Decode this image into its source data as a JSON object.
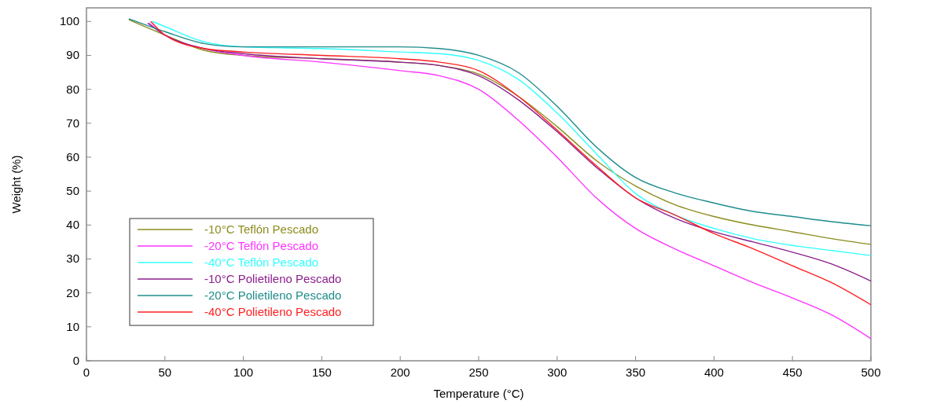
{
  "chart_data": {
    "type": "line",
    "xlabel": "Temperature (°C)",
    "ylabel": "Weight (%)",
    "xlim": [
      0,
      500
    ],
    "ylim": [
      0,
      104
    ],
    "xticks": [
      0,
      50,
      100,
      150,
      200,
      250,
      300,
      350,
      400,
      450,
      500
    ],
    "yticks": [
      0,
      10,
      20,
      30,
      40,
      50,
      60,
      70,
      80,
      90,
      100
    ],
    "grid": false,
    "legend": "bottom left",
    "marker": "none",
    "line_style": "solid",
    "series": [
      {
        "name": "-10°C Teflón Pescado",
        "color": "#8c8c1e",
        "x": [
          27,
          50,
          75,
          100,
          150,
          200,
          225,
          250,
          275,
          300,
          325,
          350,
          375,
          400,
          425,
          450,
          475,
          500
        ],
        "values": [
          100.5,
          96,
          91.5,
          90,
          89,
          88,
          87,
          84.5,
          78,
          69,
          59,
          51.5,
          46,
          42.5,
          40,
          38,
          36,
          34.3
        ]
      },
      {
        "name": "-20°C Teflón Pescado",
        "color": "#ff33ff",
        "x": [
          40,
          50,
          75,
          100,
          150,
          200,
          225,
          250,
          275,
          300,
          325,
          350,
          375,
          400,
          425,
          450,
          475,
          500
        ],
        "values": [
          99.5,
          96,
          92,
          90,
          88,
          85.5,
          84,
          80,
          71,
          60,
          48,
          39,
          33,
          28,
          23,
          18.5,
          13.5,
          6.5
        ]
      },
      {
        "name": "-40°C Teflón Pescado",
        "color": "#33ffff",
        "x": [
          42,
          50,
          75,
          100,
          150,
          200,
          225,
          250,
          275,
          300,
          325,
          350,
          375,
          400,
          425,
          450,
          475,
          500
        ],
        "values": [
          100,
          98.5,
          94,
          92.5,
          92,
          91,
          90.5,
          88.5,
          83,
          73,
          61,
          49.3,
          43,
          39,
          36,
          34,
          32.5,
          31
        ]
      },
      {
        "name": "-10°C Polietileno Pescado",
        "color": "#8c1e8c",
        "x": [
          39,
          50,
          75,
          100,
          150,
          200,
          225,
          250,
          275,
          300,
          325,
          350,
          375,
          400,
          425,
          450,
          475,
          500
        ],
        "values": [
          99.5,
          96,
          92,
          90.5,
          89,
          88,
          87,
          84,
          77,
          67.5,
          57,
          48,
          42,
          38,
          35,
          32,
          28.5,
          23.5
        ]
      },
      {
        "name": "-20°C Polietileno Pescado",
        "color": "#1e8c8c",
        "x": [
          27,
          50,
          75,
          100,
          150,
          200,
          225,
          250,
          275,
          300,
          325,
          350,
          375,
          400,
          425,
          450,
          475,
          500
        ],
        "values": [
          100.8,
          97,
          93.5,
          92.5,
          92.5,
          92.5,
          92,
          90,
          85,
          75,
          63,
          54,
          49.5,
          46.5,
          44,
          42.5,
          41,
          39.8
        ]
      },
      {
        "name": "-40°C Polietileno Pescado",
        "color": "#ff2020",
        "x": [
          41,
          50,
          75,
          100,
          150,
          200,
          225,
          250,
          275,
          300,
          325,
          350,
          375,
          400,
          425,
          450,
          475,
          500
        ],
        "values": [
          100,
          96,
          92,
          91,
          90,
          89,
          88,
          85.5,
          78,
          68,
          57.5,
          48,
          43,
          37.5,
          33,
          28,
          23,
          16.5
        ]
      }
    ]
  }
}
